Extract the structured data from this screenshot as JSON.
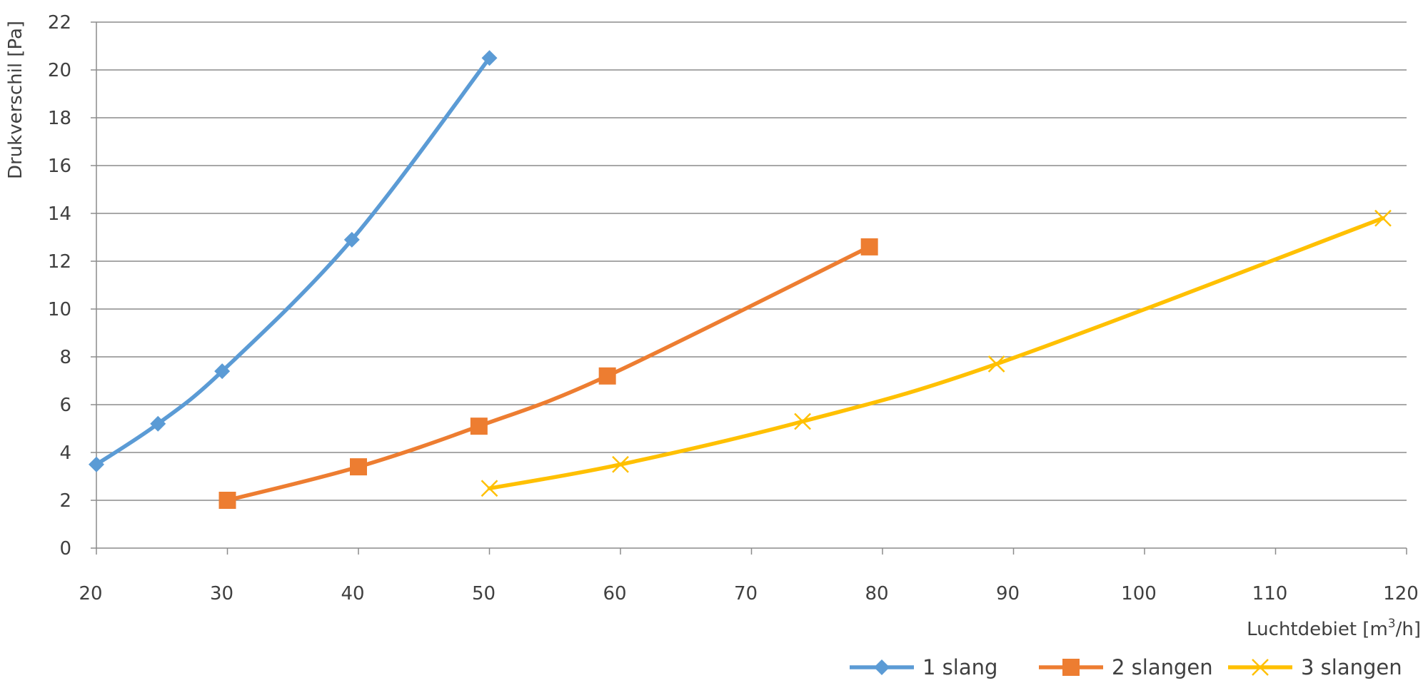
{
  "chart_data": {
    "type": "line",
    "xlabel_main": "Luchtdebiet [m",
    "xlabel_sup": "3",
    "xlabel_end": "/h]",
    "ylabel": "Drukverschil [Pa]",
    "xlim": [
      20,
      120
    ],
    "ylim": [
      0,
      22
    ],
    "x_ticks": [
      20,
      30,
      40,
      50,
      60,
      70,
      80,
      90,
      100,
      110,
      120
    ],
    "y_ticks": [
      0,
      2,
      4,
      6,
      8,
      10,
      12,
      14,
      16,
      18,
      20,
      22
    ],
    "grid": true,
    "legend_position": "bottom-right",
    "series": [
      {
        "name": "1 slang",
        "color": "#5b9bd5",
        "marker": "diamond",
        "points": [
          [
            20,
            3.5
          ],
          [
            24.7,
            5.2
          ],
          [
            29.6,
            7.4
          ],
          [
            39.5,
            12.9
          ],
          [
            50,
            20.5
          ]
        ]
      },
      {
        "name": "2 slangen",
        "color": "#ed7d31",
        "marker": "square",
        "points": [
          [
            30,
            2.0
          ],
          [
            40,
            3.4
          ],
          [
            49.2,
            5.1
          ],
          [
            59,
            7.2
          ],
          [
            79,
            12.6
          ]
        ]
      },
      {
        "name": "3 slangen",
        "color": "#ffc000",
        "marker": "x",
        "points": [
          [
            50,
            2.5
          ],
          [
            60,
            3.5
          ],
          [
            73.9,
            5.3
          ],
          [
            88.7,
            7.7
          ],
          [
            118.2,
            13.8
          ]
        ]
      }
    ]
  }
}
